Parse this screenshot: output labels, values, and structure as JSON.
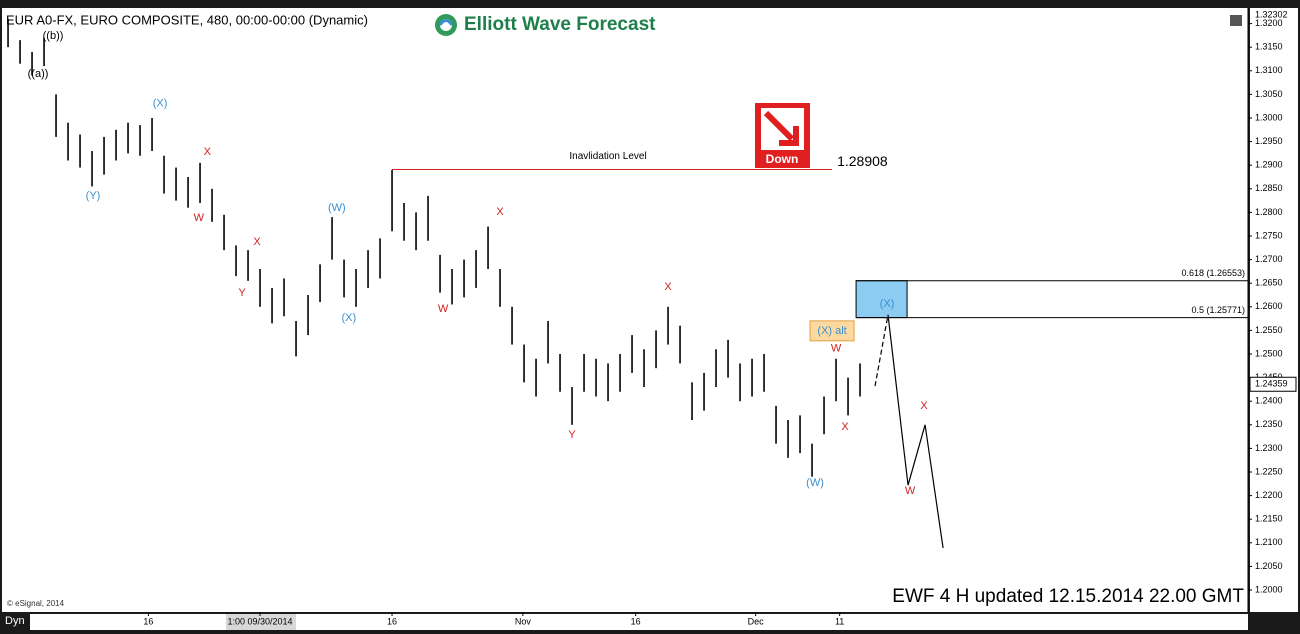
{
  "chart_data": {
    "type": "ohlc",
    "title": "EUR A0-FX, EURO COMPOSITE, 480, 00:00-00:00 (Dynamic)",
    "brand": "Elliott Wave Forecast",
    "signal": "Down",
    "copyright": "© eSignal, 2014",
    "corner_label": "Dyn",
    "footer": "EWF 4 H updated  12.15.2014  22.00 GMT",
    "color": "#000000",
    "xlim": [
      -0.67,
      103.33
    ],
    "ylim": [
      1.19534,
      1.32288
    ],
    "xticks": [
      {
        "value": 11.7,
        "label": "16"
      },
      {
        "value": 21,
        "label": "1:00 09/30/2014"
      },
      {
        "value": 32,
        "label": "16"
      },
      {
        "value": 42.9,
        "label": "Nov"
      },
      {
        "value": 52.3,
        "label": "16"
      },
      {
        "value": 62.3,
        "label": "Dec"
      },
      {
        "value": 69.3,
        "label": "11"
      }
    ],
    "yticks": [
      {
        "value": 1.2,
        "label": "1.2000"
      },
      {
        "value": 1.205,
        "label": "1.2050"
      },
      {
        "value": 1.21,
        "label": "1.2100"
      },
      {
        "value": 1.215,
        "label": "1.2150"
      },
      {
        "value": 1.22,
        "label": "1.2200"
      },
      {
        "value": 1.225,
        "label": "1.2250"
      },
      {
        "value": 1.23,
        "label": "1.2300"
      },
      {
        "value": 1.235,
        "label": "1.2350"
      },
      {
        "value": 1.24,
        "label": "1.2400"
      },
      {
        "value": 1.245,
        "label": "1.2450"
      },
      {
        "value": 1.25,
        "label": "1.2500"
      },
      {
        "value": 1.255,
        "label": "1.2550"
      },
      {
        "value": 1.26,
        "label": "1.2600"
      },
      {
        "value": 1.265,
        "label": "1.2650"
      },
      {
        "value": 1.27,
        "label": "1.2700"
      },
      {
        "value": 1.275,
        "label": "1.2750"
      },
      {
        "value": 1.28,
        "label": "1.2800"
      },
      {
        "value": 1.285,
        "label": "1.2850"
      },
      {
        "value": 1.29,
        "label": "1.2900"
      },
      {
        "value": 1.295,
        "label": "1.2950"
      },
      {
        "value": 1.3,
        "label": "1.3000"
      },
      {
        "value": 1.305,
        "label": "1.3050"
      },
      {
        "value": 1.31,
        "label": "1.3100"
      },
      {
        "value": 1.315,
        "label": "1.3150"
      },
      {
        "value": 1.32,
        "label": "1.3200"
      }
    ],
    "high_label": 1.32302,
    "last_price": 1.24359,
    "highs": [
      1.321,
      1.3165,
      1.314,
      1.317,
      1.305,
      1.299,
      1.2965,
      1.293,
      1.296,
      1.2975,
      1.299,
      1.2985,
      1.3,
      1.292,
      1.2895,
      1.2875,
      1.2905,
      1.285,
      1.2795,
      1.273,
      1.272,
      1.268,
      1.264,
      1.266,
      1.257,
      1.2625,
      1.269,
      1.279,
      1.27,
      1.268,
      1.272,
      1.2745,
      1.289,
      1.282,
      1.28,
      1.2835,
      1.271,
      1.268,
      1.27,
      1.272,
      1.277,
      1.268,
      1.26,
      1.252,
      1.249,
      1.257,
      1.25,
      1.243,
      1.25,
      1.249,
      1.248,
      1.25,
      1.254,
      1.251,
      1.255,
      1.26,
      1.256,
      1.244,
      1.246,
      1.251,
      1.253,
      1.248,
      1.249,
      1.25,
      1.239,
      1.236,
      1.237,
      1.231,
      1.241,
      1.249,
      1.245,
      1.248
    ],
    "lows": [
      1.315,
      1.3115,
      1.309,
      1.311,
      1.296,
      1.291,
      1.2895,
      1.2855,
      1.288,
      1.291,
      1.2925,
      1.292,
      1.293,
      1.284,
      1.2825,
      1.281,
      1.282,
      1.278,
      1.272,
      1.2665,
      1.2655,
      1.26,
      1.2565,
      1.258,
      1.2495,
      1.254,
      1.261,
      1.27,
      1.262,
      1.26,
      1.264,
      1.266,
      1.276,
      1.274,
      1.272,
      1.274,
      1.263,
      1.2605,
      1.262,
      1.264,
      1.268,
      1.26,
      1.252,
      1.244,
      1.241,
      1.248,
      1.242,
      1.235,
      1.242,
      1.241,
      1.24,
      1.242,
      1.246,
      1.243,
      1.247,
      1.252,
      1.248,
      1.236,
      1.238,
      1.243,
      1.245,
      1.24,
      1.241,
      1.242,
      1.231,
      1.228,
      1.229,
      1.224,
      1.233,
      1.24,
      1.237,
      1.241
    ],
    "invalidation": {
      "label": "Inavlidation Level",
      "value": 1.28908,
      "x": [
        32,
        68.67
      ]
    },
    "fib_levels": [
      {
        "label": "0.618 (1.26553)",
        "value": 1.26553
      },
      {
        "label": "0.5 (1.25771)",
        "value": 1.25771
      }
    ],
    "target_box_x": [
      70.67,
      74.92
    ],
    "projection": {
      "x": [
        72.25,
        73.33,
        75,
        76.42,
        77.92
      ],
      "y": [
        1.2432,
        1.2583,
        1.2222,
        1.235,
        1.2089
      ]
    },
    "annotations": [
      {
        "text": "((b))",
        "x": 3.75,
        "y": 1.3174,
        "color": "#000000"
      },
      {
        "text": "((a))",
        "x": 2.5,
        "y": 1.3093,
        "color": "#000000"
      },
      {
        "text": "(X)",
        "x": 12.67,
        "y": 1.303,
        "color": "#3a8fd0"
      },
      {
        "text": "(Y)",
        "x": 7.08,
        "y": 1.2835,
        "color": "#3a8fd0"
      },
      {
        "text": "X",
        "x": 16.6,
        "y": 1.2928,
        "color": "#d02020"
      },
      {
        "text": "W",
        "x": 15.9,
        "y": 1.2788,
        "color": "#d02020"
      },
      {
        "text": "X",
        "x": 20.75,
        "y": 1.2737,
        "color": "#d02020"
      },
      {
        "text": "Y",
        "x": 19.5,
        "y": 1.2629,
        "color": "#d02020"
      },
      {
        "text": "(W)",
        "x": 27.4,
        "y": 1.2809,
        "color": "#3a8fd0"
      },
      {
        "text": "(X)",
        "x": 28.4,
        "y": 1.2576,
        "color": "#3a8fd0"
      },
      {
        "text": "X",
        "x": 41,
        "y": 1.2801,
        "color": "#d02020"
      },
      {
        "text": "W",
        "x": 36.25,
        "y": 1.2595,
        "color": "#d02020"
      },
      {
        "text": "X",
        "x": 55,
        "y": 1.2642,
        "color": "#d02020"
      },
      {
        "text": "Y",
        "x": 47,
        "y": 1.2328,
        "color": "#d02020"
      },
      {
        "text": "(W)",
        "x": 67.25,
        "y": 1.2227,
        "color": "#3a8fd0"
      },
      {
        "text": "W",
        "x": 69,
        "y": 1.2511,
        "color": "#d02020"
      },
      {
        "text": "X",
        "x": 69.75,
        "y": 1.2345,
        "color": "#d02020"
      },
      {
        "text": "(X)",
        "x": 73.25,
        "y": 1.2606,
        "color": "#3a8fd0"
      },
      {
        "text": "X",
        "x": 76.33,
        "y": 1.239,
        "color": "#d02020"
      },
      {
        "text": "W",
        "x": 75.17,
        "y": 1.221,
        "color": "#d02020"
      }
    ],
    "alt_label": {
      "text": "(X) alt",
      "x": 68.67,
      "y": 1.2549
    }
  }
}
